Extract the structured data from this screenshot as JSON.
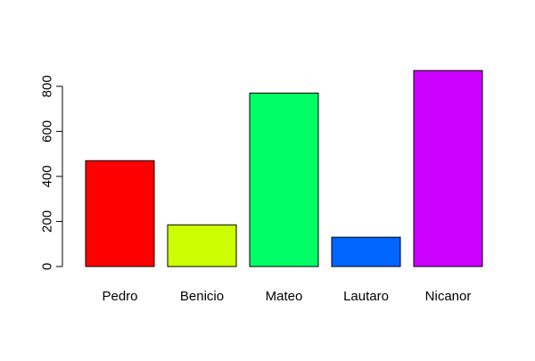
{
  "chart_data": {
    "type": "bar",
    "categories": [
      "Pedro",
      "Benicio",
      "Mateo",
      "Lautaro",
      "Nicanor"
    ],
    "values": [
      470,
      185,
      770,
      130,
      870
    ],
    "colors": [
      "#ff0000",
      "#ccff00",
      "#00ff66",
      "#0066ff",
      "#cc00ff"
    ],
    "title": "",
    "xlabel": "",
    "ylabel": "",
    "ylim": [
      0,
      870
    ],
    "yticks": [
      0,
      200,
      400,
      600,
      800
    ],
    "grid": false,
    "legend": "none"
  }
}
